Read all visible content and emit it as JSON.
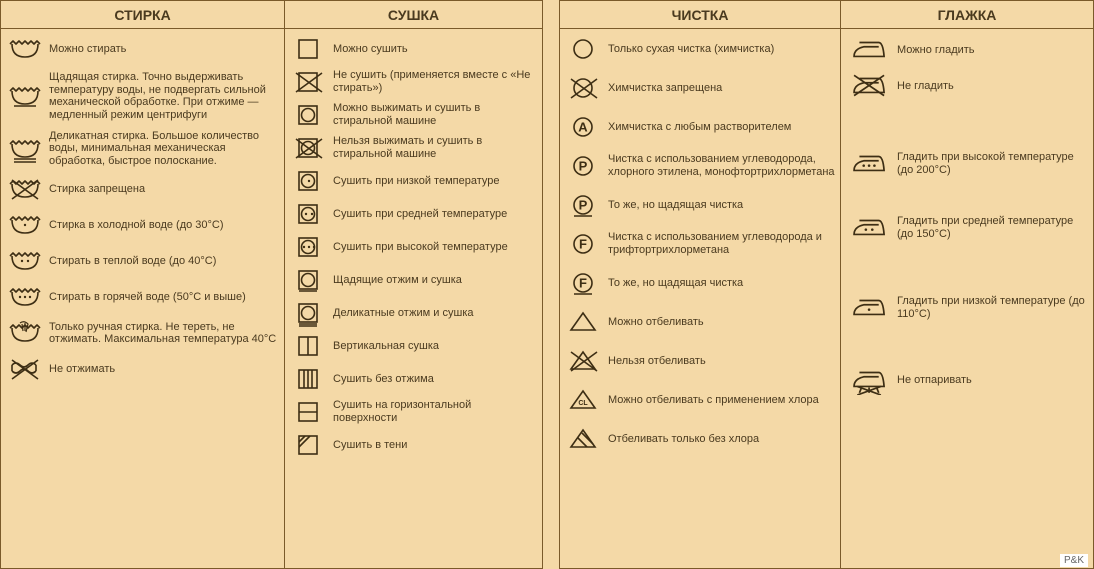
{
  "colors": {
    "bg": "#f4d9a7",
    "border": "#7a5a2a",
    "ink": "#4a3a1f",
    "icon": "#3d2e14"
  },
  "watermark": "P&K",
  "columns": [
    {
      "title": "СТИРКА",
      "items": [
        {
          "icon": "tub",
          "text": "Можно стирать"
        },
        {
          "icon": "tub-1bar",
          "text": "Щадящая стирка. Точно выдерживать температуру воды, не подвергать сильной механической обработке. При отжиме — медленный режим центрифуги"
        },
        {
          "icon": "tub-2bar",
          "text": "Деликатная стирка. Большое количество воды, минимальная механическая обработка, быстрое полоскание."
        },
        {
          "icon": "tub-x",
          "text": "Стирка запрещена"
        },
        {
          "icon": "tub-1dot",
          "text": "Стирка в холодной воде (до 30°С)"
        },
        {
          "icon": "tub-2dot",
          "text": "Стирать в теплой воде (до 40°С)"
        },
        {
          "icon": "tub-3dot",
          "text": "Стирать в горячей воде (50°С и выше)"
        },
        {
          "icon": "hand",
          "text": "Только ручная стирка. Не тереть, не отжимать. Максимальная температура 40°С"
        },
        {
          "icon": "twist-x",
          "text": "Не отжимать"
        }
      ]
    },
    {
      "title": "СУШКА",
      "items": [
        {
          "icon": "sq",
          "text": "Можно сушить"
        },
        {
          "icon": "sq-x",
          "text": "Не сушить (применяется вместе с «Не стирать»)"
        },
        {
          "icon": "sq-circ",
          "text": "Можно выжимать и сушить в стиральной машине"
        },
        {
          "icon": "sq-circ-x",
          "text": "Нельзя выжимать и сушить в стиральной машине"
        },
        {
          "icon": "sq-circ-1dot",
          "text": "Сушить при низкой температуре"
        },
        {
          "icon": "sq-circ-2dot",
          "text": "Сушить при средней температуре"
        },
        {
          "icon": "sq-circ-3dot",
          "text": "Сушить при высокой температуре"
        },
        {
          "icon": "sq-circ-1bar",
          "text": "Щадящие отжим и сушка"
        },
        {
          "icon": "sq-circ-2bar",
          "text": "Деликатные отжим и сушка"
        },
        {
          "icon": "sq-vline",
          "text": "Вертикальная сушка"
        },
        {
          "icon": "sq-3vline",
          "text": "Сушить без отжима"
        },
        {
          "icon": "sq-hline",
          "text": "Сушить на горизонтальной поверхности"
        },
        {
          "icon": "sq-diag",
          "text": "Сушить в тени"
        }
      ]
    },
    {
      "title": "ЧИСТКА",
      "items": [
        {
          "icon": "circ",
          "text": "Только сухая чистка (химчистка)"
        },
        {
          "icon": "circ-x",
          "text": "Химчистка запрещена"
        },
        {
          "icon": "circ-A",
          "text": "Химчистка с любым растворителем"
        },
        {
          "icon": "circ-P",
          "text": "Чистка с использованием углеводорода, хлорного этилена, монофтортрихлорметана"
        },
        {
          "icon": "circ-P-bar",
          "text": "То же, но щадящая чистка"
        },
        {
          "icon": "circ-F",
          "text": "Чистка с использованием углеводорода и трифтортрихлорметана"
        },
        {
          "icon": "circ-F-bar",
          "text": "То же, но щадящая чистка"
        },
        {
          "icon": "tri",
          "text": "Можно отбеливать"
        },
        {
          "icon": "tri-x",
          "text": "Нельзя отбеливать"
        },
        {
          "icon": "tri-cl",
          "text": "Можно отбеливать с применением хлора"
        },
        {
          "icon": "tri-stripe",
          "text": "Отбеливать только без хлора"
        }
      ]
    },
    {
      "title": "ГЛАЖКА",
      "items": [
        {
          "icon": "iron",
          "text": "Можно гладить"
        },
        {
          "icon": "iron-x",
          "text": "Не гладить"
        },
        {
          "icon": "iron-3dot",
          "text": "Гладить при высокой температуре (до 200°С)"
        },
        {
          "icon": "iron-2dot",
          "text": "Гладить при средней температуре (до 150°С)"
        },
        {
          "icon": "iron-1dot",
          "text": "Гладить при низкой температуре (до 110°С)"
        },
        {
          "icon": "iron-nosteam",
          "text": "Не отпаривать"
        }
      ]
    }
  ],
  "layout": {
    "col_gaps": {
      "col3_row_spacing": [
        6,
        48,
        34,
        50,
        42,
        38
      ]
    }
  }
}
